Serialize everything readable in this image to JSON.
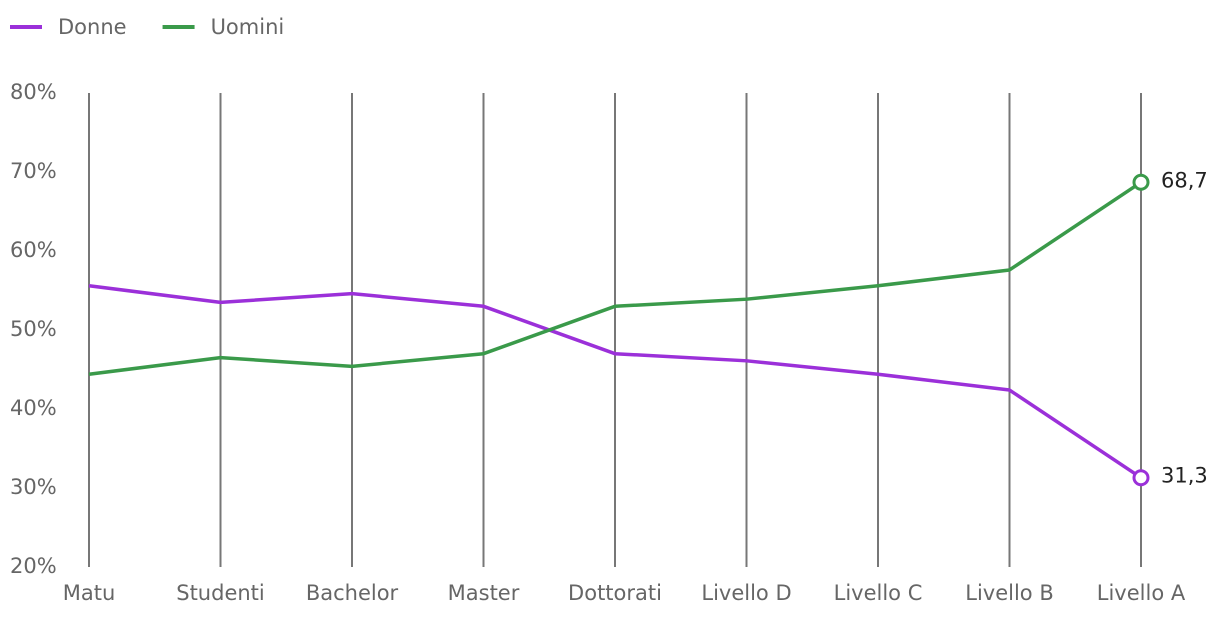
{
  "chart_data": {
    "type": "line",
    "categories": [
      "Matu",
      "Studenti",
      "Bachelor",
      "Master",
      "Dottorati",
      "Livello D",
      "Livello C",
      "Livello B",
      "Livello A"
    ],
    "series": [
      {
        "name": "Donne",
        "color": "#9b30d9",
        "values": [
          55.6,
          53.5,
          54.6,
          53.0,
          47.0,
          46.1,
          44.4,
          42.4,
          31.3
        ],
        "value_labels": [
          null,
          null,
          null,
          null,
          null,
          null,
          null,
          null,
          "31,3"
        ]
      },
      {
        "name": "Uomini",
        "color": "#3a9a4a",
        "values": [
          44.4,
          46.5,
          45.4,
          47.0,
          53.0,
          53.9,
          55.6,
          57.6,
          68.7
        ],
        "value_labels": [
          null,
          null,
          null,
          null,
          null,
          null,
          null,
          null,
          "68,7"
        ]
      }
    ],
    "ylim": [
      20,
      80
    ],
    "yticks": [
      {
        "value": 20,
        "label": "20%"
      },
      {
        "value": 30,
        "label": "30%"
      },
      {
        "value": 40,
        "label": "40%"
      },
      {
        "value": 50,
        "label": "50%"
      },
      {
        "value": 60,
        "label": "60%"
      },
      {
        "value": 70,
        "label": "70%"
      },
      {
        "value": 80,
        "label": "80%"
      }
    ],
    "x_grid": true,
    "legend": "top-left"
  }
}
